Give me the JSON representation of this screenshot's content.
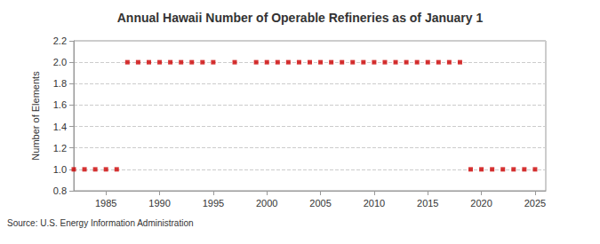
{
  "chart_data": {
    "type": "scatter",
    "title": "Annual Hawaii Number of Operable Refineries as of January 1",
    "y_label": "Number of Elements",
    "source": "Source: U.S. Energy Information Administration",
    "x": [
      1982,
      1983,
      1984,
      1985,
      1986,
      1987,
      1988,
      1989,
      1990,
      1991,
      1992,
      1993,
      1994,
      1995,
      1996,
      1997,
      1998,
      1999,
      2000,
      2001,
      2002,
      2003,
      2004,
      2005,
      2006,
      2007,
      2008,
      2009,
      2010,
      2011,
      2012,
      2013,
      2014,
      2015,
      2016,
      2017,
      2018,
      2019,
      2020,
      2021,
      2022,
      2023,
      2024,
      2025
    ],
    "values": [
      1,
      1,
      1,
      1,
      1,
      2,
      2,
      2,
      2,
      2,
      2,
      2,
      2,
      2,
      null,
      2,
      null,
      2,
      2,
      2,
      2,
      2,
      2,
      2,
      2,
      2,
      2,
      2,
      2,
      2,
      2,
      2,
      2,
      2,
      2,
      2,
      2,
      1,
      1,
      1,
      1,
      1,
      1,
      1
    ],
    "color": "#cc0000",
    "marker": "square",
    "xlim": [
      1982,
      2026
    ],
    "xticks": [
      1985,
      1990,
      1995,
      2000,
      2005,
      2010,
      2015,
      2020,
      2025
    ],
    "ylim": [
      0.8,
      2.2
    ],
    "yticks": [
      0.8,
      {
        "value": 1,
        "label": "1.0"
      },
      1.2,
      1.4,
      1.6,
      1.8,
      {
        "value": 2,
        "label": "2.0"
      },
      2.2
    ],
    "grid": true
  }
}
